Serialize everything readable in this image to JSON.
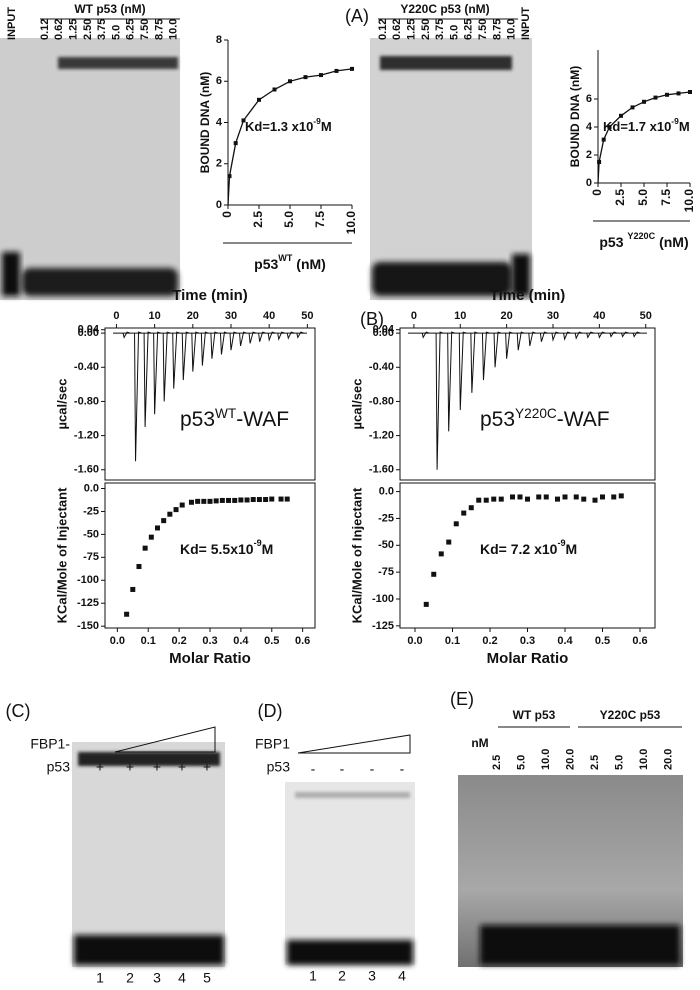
{
  "panels": {
    "A": "(A)",
    "B": "(B)",
    "C": "(C)",
    "D": "(D)",
    "E": "(E)"
  },
  "gel_a_wt": {
    "title": "WT p53 (nM)",
    "input": "INPUT",
    "lanes": [
      "0.12",
      "0.62",
      "1.25",
      "2.50",
      "3.75",
      "5.0",
      "6.25",
      "7.50",
      "8.75",
      "10.0"
    ]
  },
  "gel_a_y": {
    "title": "Y220C p53 (nM)",
    "input": "INPUT",
    "lanes": [
      "0.12",
      "0.62",
      "1.25",
      "2.50",
      "3.75",
      "5.0",
      "6.25",
      "7.50",
      "8.75",
      "10.0"
    ]
  },
  "chart_data": [
    {
      "type": "binding",
      "ylabel": "BOUND DNA (nM)",
      "xlabel": {
        "text": "p53",
        "sup": "WT",
        "tail": " (nM)"
      },
      "annotation": {
        "text": "Kd=1.3 x10",
        "sup": "-9",
        "tail": "M"
      },
      "x": [
        0.12,
        0.62,
        1.25,
        2.5,
        3.75,
        5,
        6.25,
        7.5,
        8.75,
        10
      ],
      "values": [
        1.4,
        3.0,
        4.1,
        5.1,
        5.6,
        6.0,
        6.2,
        6.3,
        6.5,
        6.6
      ],
      "color": "#111111",
      "xlim": [
        0,
        10
      ],
      "xticks": [
        0,
        2.5,
        {
          "value": 5,
          "label": "5.0"
        },
        7.5,
        {
          "value": 10,
          "label": "10.0"
        }
      ],
      "ylim": [
        0,
        8
      ],
      "yticks": [
        0,
        2,
        4,
        6,
        8
      ]
    },
    {
      "type": "binding",
      "ylabel": "BOUND DNA (nM)",
      "xlabel": {
        "text": "p53 ",
        "sup": "Y220C",
        "tail": " (nM)"
      },
      "annotation": {
        "text": "Kd=1.7 x10",
        "sup": "-9",
        "tail": "M"
      },
      "x": [
        0.12,
        0.62,
        1.25,
        2.5,
        3.75,
        5,
        6.25,
        7.5,
        8.75,
        10
      ],
      "values": [
        1.5,
        3.1,
        4.0,
        4.8,
        5.4,
        5.8,
        6.1,
        6.3,
        6.4,
        6.5
      ],
      "color": "#111111",
      "xlim": [
        0,
        10
      ],
      "xticks": [
        0,
        2.5,
        {
          "value": 5,
          "label": "5.0"
        },
        7.5,
        {
          "value": 10,
          "label": "10.0"
        }
      ],
      "ylim": [
        0,
        9.5
      ],
      "yticks": [
        0,
        2,
        4,
        6
      ]
    },
    {
      "type": "thermogram",
      "xlabel": "Time (min)",
      "ylabel": "µcal/sec",
      "annotation": {
        "text": "p53",
        "sup": "WT",
        "tail": "-WAF"
      },
      "x": [
        2,
        5,
        7.5,
        10,
        12.5,
        15,
        17.5,
        20,
        22.5,
        25,
        27.5,
        30,
        32.5,
        35,
        37.5,
        40,
        42.5,
        45,
        47.5
      ],
      "values": [
        -0.05,
        -1.5,
        -1.1,
        -0.95,
        -0.8,
        -0.65,
        -0.55,
        -0.45,
        -0.38,
        -0.3,
        -0.25,
        -0.2,
        -0.15,
        -0.12,
        -0.1,
        -0.08,
        -0.07,
        -0.06,
        -0.05
      ],
      "color": "#111111",
      "xlim": [
        -3,
        52
      ],
      "xticks": [
        0,
        10,
        20,
        30,
        40,
        50
      ],
      "ylim": [
        -1.72,
        0.06
      ],
      "yticks": [
        0.04,
        {
          "value": 0,
          "label": "0.00"
        },
        {
          "value": -0.4,
          "label": "-0.40"
        },
        {
          "value": -0.8,
          "label": "-0.80"
        },
        {
          "value": -1.2,
          "label": "-1.20"
        },
        {
          "value": -1.6,
          "label": "-1.60"
        }
      ]
    },
    {
      "type": "scatter",
      "xlabel": "Molar Ratio",
      "ylabel": "KCal/Mole of Injectant",
      "annotation": {
        "text": "Kd= 5.5x10",
        "sup": "-9",
        "tail": "M"
      },
      "x": [
        0.03,
        0.05,
        0.07,
        0.09,
        0.11,
        0.13,
        0.15,
        0.17,
        0.19,
        0.21,
        0.24,
        0.26,
        0.28,
        0.3,
        0.32,
        0.34,
        0.36,
        0.38,
        0.4,
        0.42,
        0.44,
        0.46,
        0.48,
        0.5,
        0.53,
        0.55
      ],
      "values": [
        -137,
        -110,
        -85,
        -65,
        -53,
        -43,
        -35,
        -28,
        -23,
        -18,
        -15,
        -14,
        -14,
        -14,
        -13.5,
        -13,
        -13,
        -13,
        -12.5,
        -12.5,
        -12,
        -12,
        -12,
        -11.5,
        -11.5,
        -11.5
      ],
      "color": "#111111",
      "xlim": [
        -0.04,
        0.64
      ],
      "xticks": [
        {
          "value": 0,
          "label": "0.0"
        },
        0.1,
        0.2,
        0.3,
        0.4,
        0.5,
        0.6
      ],
      "ylim": [
        -152,
        6
      ],
      "yticks": [
        {
          "value": 0,
          "label": "0.0"
        },
        -25,
        -50,
        -75,
        -100,
        -125,
        -150
      ]
    },
    {
      "type": "thermogram",
      "xlabel": "Time (min)",
      "ylabel": "µcal/sec",
      "annotation": {
        "text": "p53",
        "sup": "Y220C",
        "tail": "-WAF"
      },
      "x": [
        2,
        5,
        7.5,
        10,
        12.5,
        15,
        17.5,
        20,
        22.5,
        25,
        27.5,
        30,
        32.5,
        35,
        37.5,
        40,
        42.5,
        45,
        47.5
      ],
      "values": [
        -0.05,
        -1.6,
        -1.15,
        -0.9,
        -0.7,
        -0.55,
        -0.4,
        -0.3,
        -0.2,
        -0.15,
        -0.1,
        -0.08,
        -0.07,
        -0.06,
        -0.05,
        -0.05,
        -0.04,
        -0.04,
        -0.04
      ],
      "color": "#111111",
      "xlim": [
        -3,
        52
      ],
      "xticks": [
        0,
        10,
        20,
        30,
        40,
        50
      ],
      "ylim": [
        -1.72,
        0.06
      ],
      "yticks": [
        0.04,
        {
          "value": 0,
          "label": "0.00"
        },
        {
          "value": -0.4,
          "label": "-0.40"
        },
        {
          "value": -0.8,
          "label": "-0.80"
        },
        {
          "value": -1.2,
          "label": "-1.20"
        },
        {
          "value": -1.6,
          "label": "-1.60"
        }
      ]
    },
    {
      "type": "scatter",
      "xlabel": "Molar Ratio",
      "ylabel": "KCal/Mole of Injectant",
      "annotation": {
        "text": "Kd= 7.2 x10",
        "sup": "-9",
        "tail": "M"
      },
      "x": [
        0.03,
        0.05,
        0.07,
        0.09,
        0.11,
        0.13,
        0.15,
        0.17,
        0.19,
        0.21,
        0.23,
        0.26,
        0.28,
        0.3,
        0.33,
        0.35,
        0.38,
        0.4,
        0.43,
        0.45,
        0.48,
        0.5,
        0.53,
        0.55
      ],
      "values": [
        -105,
        -77,
        -58,
        -47,
        -30,
        -20,
        -15,
        -8,
        -8,
        -7,
        -7,
        -5,
        -5,
        -7,
        -5,
        -5,
        -7,
        -5,
        -5,
        -7,
        -8,
        -5,
        -5,
        -4
      ],
      "color": "#111111",
      "xlim": [
        -0.04,
        0.64
      ],
      "xticks": [
        {
          "value": 0,
          "label": "0.0"
        },
        0.1,
        0.2,
        0.3,
        0.4,
        0.5,
        0.6
      ],
      "ylim": [
        -127,
        8
      ],
      "yticks": [
        {
          "value": 0,
          "label": "0.0"
        },
        -25,
        -50,
        -75,
        -100,
        -125
      ]
    }
  ],
  "gel_c": {
    "label": "FBP1-",
    "p53": "p53",
    "signs": [
      "+",
      "+",
      "+",
      "+",
      "+"
    ],
    "lanes": [
      "1",
      "2",
      "3",
      "4",
      "5"
    ]
  },
  "gel_d": {
    "label": "FBP1",
    "p53": "p53",
    "signs": [
      "-",
      "-",
      "-",
      "-"
    ],
    "lanes": [
      "1",
      "2",
      "3",
      "4"
    ]
  },
  "gel_e": {
    "groups": [
      "WT p53",
      "Y220C p53"
    ],
    "unit": "nM",
    "lanes": [
      "2.5",
      "5.0",
      "10.0",
      "20.0",
      "2.5",
      "5.0",
      "10.0",
      "20.0"
    ]
  }
}
